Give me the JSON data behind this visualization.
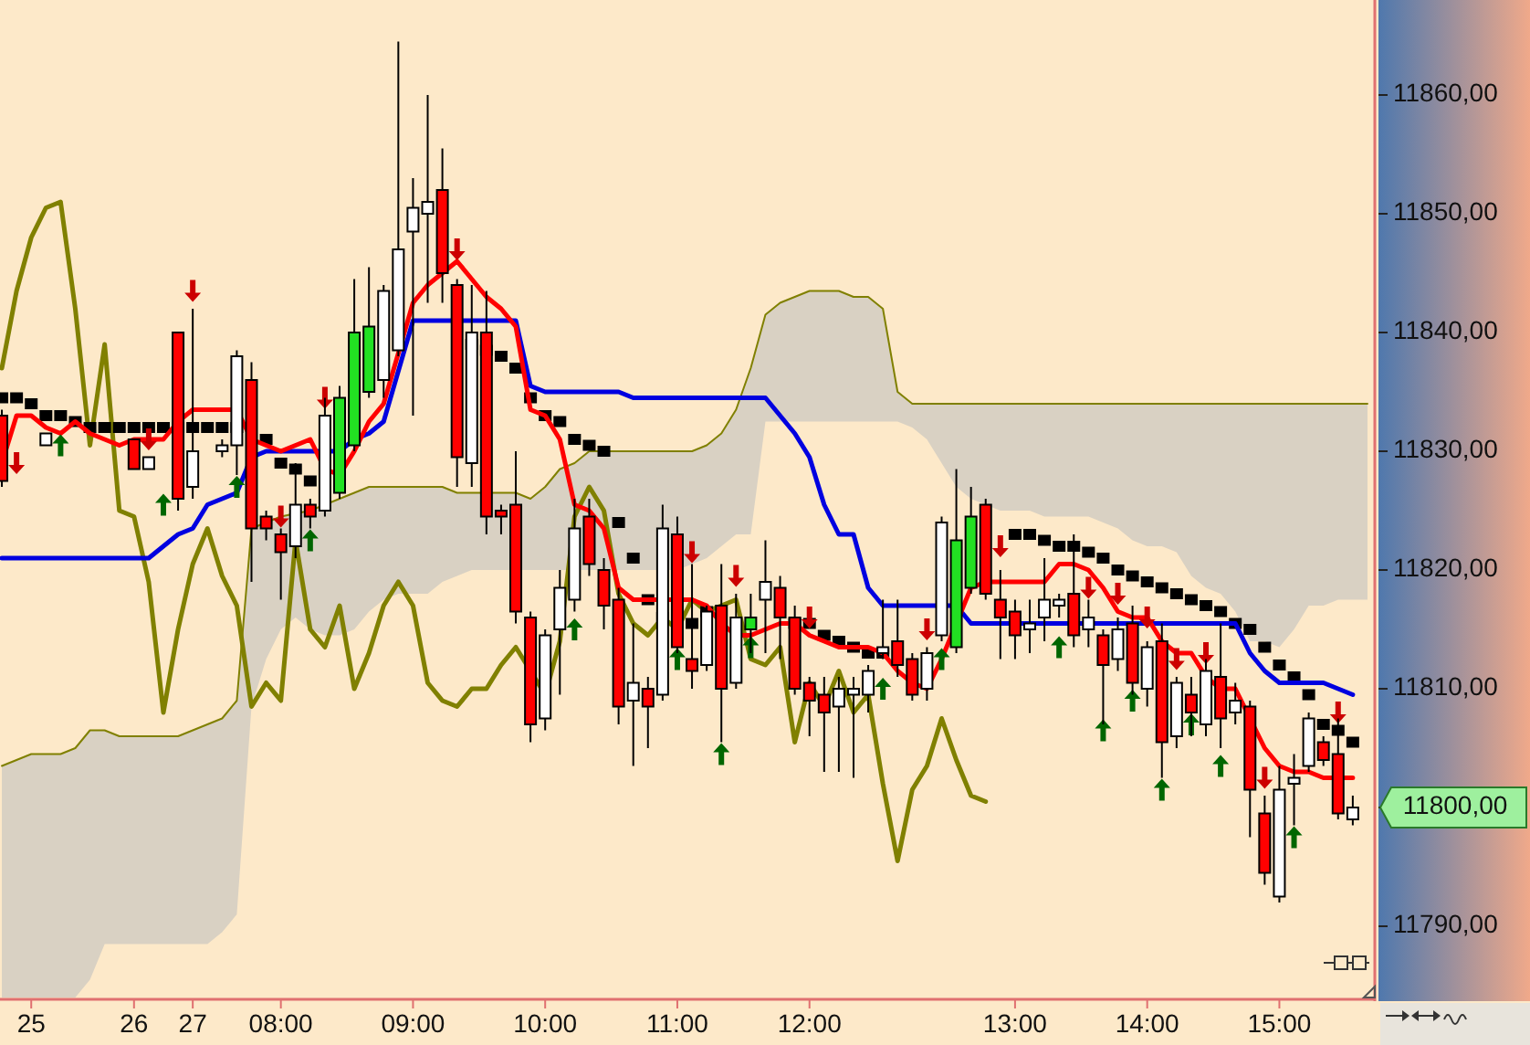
{
  "chart_data": {
    "type": "candlestick",
    "categories": [
      null,
      null,
      "25",
      null,
      null,
      null,
      null,
      null,
      null,
      "26",
      null,
      null,
      null,
      "27",
      null,
      null,
      null,
      null,
      null,
      "08:00",
      null,
      null,
      null,
      null,
      null,
      null,
      null,
      null,
      "09:00",
      null,
      null,
      null,
      null,
      null,
      null,
      null,
      null,
      "10:00",
      null,
      null,
      null,
      null,
      null,
      null,
      null,
      null,
      "11:00",
      null,
      null,
      null,
      null,
      null,
      null,
      null,
      null,
      "12:00",
      null,
      null,
      null,
      null,
      null,
      null,
      null,
      null,
      null,
      null,
      null,
      null,
      null,
      "13:00",
      null,
      null,
      null,
      null,
      null,
      null,
      null,
      null,
      "14:00",
      null,
      null,
      null,
      null,
      null,
      null,
      null,
      null,
      "15:00",
      null,
      null,
      null,
      null,
      null,
      null
    ],
    "ohlc": [
      [
        11833,
        11833.5,
        11827,
        11827.5
      ],
      null,
      null,
      [
        11830.5,
        11831.5,
        11830.5,
        11831.5
      ],
      null,
      null,
      null,
      null,
      null,
      [
        11831,
        11831,
        11828.5,
        11828.5
      ],
      [
        11828.5,
        11829.5,
        11828.5,
        11829.5
      ],
      null,
      [
        11840,
        11840,
        11825,
        11826
      ],
      [
        11827,
        11842,
        11826,
        11830
      ],
      null,
      [
        11830,
        11831,
        11829.5,
        11830.5
      ],
      [
        11830.5,
        11838.5,
        11828,
        11838
      ],
      [
        11836,
        11837.5,
        11819,
        11823.5
      ],
      [
        11824.5,
        11825,
        11822.5,
        11823.5
      ],
      [
        11823,
        11823.5,
        11817.5,
        11821.5
      ],
      [
        11822,
        11829,
        11821,
        11825.5
      ],
      [
        11825.5,
        11826,
        11823.5,
        11824.5
      ],
      [
        11825,
        11834.5,
        11824.5,
        11833
      ],
      [
        11826.5,
        11835.5,
        11826,
        11834.5
      ],
      [
        11830.5,
        11844.5,
        11830,
        11840
      ],
      [
        11835,
        11845.5,
        11834.5,
        11840.5
      ],
      [
        11836,
        11844,
        11834.5,
        11843.5
      ],
      [
        11838.5,
        11864.5,
        11838,
        11847
      ],
      [
        11848.5,
        11853,
        11833,
        11850.5
      ],
      [
        11850,
        11860,
        11842.5,
        11851
      ],
      [
        11852,
        11855.5,
        11842.5,
        11845
      ],
      [
        11844,
        11844.5,
        11827,
        11829.5
      ],
      [
        11829,
        11844,
        11827,
        11840
      ],
      [
        11840,
        11843.5,
        11823,
        11824.5
      ],
      [
        11825,
        11825.5,
        11823,
        11824.5
      ],
      [
        11825.5,
        11830,
        11815.5,
        11816.5
      ],
      [
        11816,
        11816.5,
        11805.5,
        11807
      ],
      [
        11807.5,
        11815,
        11806.5,
        11814.5
      ],
      [
        11815,
        11820,
        11809.5,
        11818.5
      ],
      [
        11817.5,
        11826,
        11816.5,
        11823.5
      ],
      [
        11824.5,
        11826,
        11819.5,
        11820.5
      ],
      [
        11820,
        11821,
        11815,
        11817
      ],
      [
        11817.5,
        11818.5,
        11807,
        11808.5
      ],
      [
        11809,
        11815.5,
        11803.5,
        11810.5
      ],
      [
        11810,
        11811,
        11805,
        11808.5
      ],
      [
        11809.5,
        11825.5,
        11809,
        11823.5
      ],
      [
        11823,
        11824.5,
        11813,
        11813.5
      ],
      [
        11812.5,
        11820.5,
        11810,
        11811.5
      ],
      [
        11812,
        11817,
        11811.5,
        11816.5
      ],
      [
        11817,
        11820.5,
        11805.5,
        11810
      ],
      [
        11810.5,
        11818,
        11810,
        11816
      ],
      [
        11815,
        11818,
        11813,
        11816
      ],
      [
        11817.5,
        11822.5,
        11813,
        11819
      ],
      [
        11818.5,
        11819.5,
        11812.5,
        11816
      ],
      [
        11816,
        11817,
        11809.5,
        11810
      ],
      [
        11810.5,
        11811,
        11806,
        11809
      ],
      [
        11809.5,
        11811,
        11803,
        11808
      ],
      [
        11808.5,
        11811,
        11803,
        11810
      ],
      [
        11809.5,
        11811,
        11802.5,
        11810
      ],
      [
        11809.5,
        11812,
        11808,
        11811.5
      ],
      [
        11813,
        11817.5,
        11812.5,
        11813.5
      ],
      [
        11814,
        11817.5,
        11811,
        11812
      ],
      [
        11812.5,
        11813,
        11809,
        11809.5
      ],
      [
        11810,
        11813.5,
        11809,
        11813
      ],
      [
        11814.5,
        11824.5,
        11814,
        11824
      ],
      [
        11813.5,
        11828.5,
        11813,
        11822.5
      ],
      [
        11818.5,
        11827,
        11818,
        11824.5
      ],
      [
        11825.5,
        11826,
        11817.5,
        11818
      ],
      [
        11817.5,
        11820,
        11812.5,
        11816
      ],
      [
        11816.5,
        11817.5,
        11812.5,
        11814.5
      ],
      [
        11815,
        11817.5,
        11813,
        11815.5
      ],
      [
        11816,
        11821,
        11814,
        11817.5
      ],
      [
        11817,
        11818,
        11816,
        11817.5
      ],
      [
        11818,
        11823,
        11813.5,
        11814.5
      ],
      [
        11815,
        11817.5,
        11813.5,
        11816
      ],
      [
        11814.5,
        11815,
        11807,
        11812
      ],
      [
        11812.5,
        11816,
        11811.5,
        11815
      ],
      [
        11815.5,
        11817,
        11809.5,
        11810.5
      ],
      [
        11810,
        11814,
        11808.5,
        11813.5
      ],
      [
        11814,
        11815.5,
        11802.5,
        11805.5
      ],
      [
        11806,
        11811,
        11805,
        11810.5
      ],
      [
        11809.5,
        11811,
        11806,
        11808
      ],
      [
        11807,
        11812.5,
        11806,
        11811.5
      ],
      [
        11811,
        11815.5,
        11805,
        11807.5
      ],
      [
        11808,
        11810.5,
        11807,
        11809
      ],
      [
        11808.5,
        11809,
        11797.5,
        11801.5
      ],
      [
        11799.5,
        11801,
        11793.5,
        11794.5
      ],
      [
        11792.5,
        11803.5,
        11792,
        11801.5
      ],
      [
        11802,
        11804.5,
        11798.5,
        11802.5
      ],
      [
        11803.5,
        11808,
        11803,
        11807.5
      ],
      [
        11805.5,
        11806,
        11803.5,
        11804
      ],
      [
        11804.5,
        11807.5,
        11799,
        11799.5
      ],
      [
        11799,
        11801,
        11798.5,
        11800
      ],
      null
    ],
    "colors": [
      "#ff0000",
      null,
      null,
      "#ffffff",
      null,
      null,
      null,
      null,
      null,
      "#ff0000",
      "#ffffff",
      null,
      "#ff0000",
      "#ffffff",
      null,
      "#ffffff",
      "#ffffff",
      "#ff0000",
      "#ff0000",
      "#ff0000",
      "#ffffff",
      "#ff0000",
      "#ffffff",
      "#22e022",
      "#22e022",
      "#22e022",
      "#ffffff",
      "#ffffff",
      "#ffffff",
      "#ffffff",
      "#ff0000",
      "#ff0000",
      "#ffffff",
      "#ff0000",
      "#ff0000",
      "#ff0000",
      "#ff0000",
      "#ffffff",
      "#ffffff",
      "#ffffff",
      "#ff0000",
      "#ff0000",
      "#ff0000",
      "#ffffff",
      "#ff0000",
      "#ffffff",
      "#ff0000",
      "#ff0000",
      "#ffffff",
      "#ff0000",
      "#ffffff",
      "#22e022",
      "#ffffff",
      "#ff0000",
      "#ff0000",
      "#ff0000",
      "#ff0000",
      "#ffffff",
      "#ffffff",
      "#ffffff",
      "#ffffff",
      "#ff0000",
      "#ff0000",
      "#ffffff",
      "#ffffff",
      "#22e022",
      "#22e022",
      "#ff0000",
      "#ff0000",
      "#ff0000",
      "#ffffff",
      "#ffffff",
      "#ffffff",
      "#ff0000",
      "#ffffff",
      "#ff0000",
      "#ffffff",
      "#ff0000",
      "#ffffff",
      "#ff0000",
      "#ffffff",
      "#ff0000",
      "#ffffff",
      "#ff0000",
      "#ffffff",
      "#ff0000",
      "#ff0000",
      "#ffffff",
      "#ffffff",
      "#ffffff",
      "#ff0000",
      "#ff0000",
      "#ffffff",
      null
    ],
    "series": [
      {
        "type": "line",
        "color": "#808000",
        "upper": [
          11803.5,
          11804,
          11804.5,
          11804.5,
          11804.5,
          11805,
          11806.5,
          11806.5,
          11806,
          11806,
          11806,
          11806,
          11806,
          11806.5,
          11807,
          11807.5,
          11809,
          11823.5,
          11824,
          11824.5,
          11825,
          11825,
          11825.5,
          11826,
          11826.5,
          11827,
          11827,
          11827,
          11827,
          11827,
          11827,
          11826.5,
          11826.5,
          11826.5,
          11826.5,
          11826.5,
          11826,
          11827,
          11828.5,
          11829,
          11830,
          11830,
          11830,
          11830,
          11830,
          11830,
          11830,
          11830,
          11830.5,
          11831.5,
          11833.5,
          11837,
          11841.5,
          11842.5,
          11843,
          11843.5,
          11843.5,
          11843.5,
          11843,
          11843,
          11842,
          11835,
          11834,
          11834,
          11834,
          11834,
          11834,
          11834,
          11834,
          11834,
          11834,
          11834,
          11834,
          11834,
          11834,
          11834,
          11834,
          11834,
          11834,
          11834,
          11834,
          11834,
          11834,
          11834,
          11834,
          11834,
          11834,
          11834,
          11834,
          11834,
          11834,
          11834,
          11834,
          11834
        ],
        "values": [
          11803.5,
          11804,
          11804.5,
          11804.5,
          11804.5,
          11805,
          11806.5,
          11806.5,
          11806,
          11806,
          11806,
          11806,
          11806,
          11806.5,
          11807,
          11807.5,
          11809,
          11823.5,
          11824,
          11824.5,
          null,
          11825,
          null,
          11826,
          11826.5,
          11827,
          11827,
          11827,
          11827,
          11827,
          11827,
          11826.5,
          11826.5,
          null,
          11826.5,
          11826.5,
          11826,
          11827,
          11828.5,
          11829,
          11830,
          11830,
          11830,
          11830,
          11830,
          11830,
          11830,
          11830,
          11830.5,
          11831.5,
          11833.5,
          11837,
          11841.5,
          11842.5,
          11843,
          11843.5,
          11843.5,
          11843.5,
          11843,
          11843,
          11842,
          11835,
          11834,
          11834,
          11834,
          11834,
          11834,
          11834,
          11834,
          11834,
          11834,
          11834,
          11834,
          11834,
          11834,
          11834,
          11834,
          11834,
          11834,
          11834,
          11834,
          11834,
          11834,
          11834,
          11834,
          11834,
          11834,
          11834,
          11834,
          11834,
          11834,
          11834,
          11834,
          11834
        ],
        "lower": [
          11784,
          11784,
          11784,
          11784,
          11784,
          11784,
          11785.5,
          11788.5,
          11788.5,
          11788.5,
          11788.5,
          11788.5,
          11788.5,
          11788.5,
          11788.5,
          11789.5,
          11791,
          11808.5,
          11812.5,
          11815,
          11816,
          11815,
          11814.5,
          11814.5,
          11815,
          11816.5,
          11817.5,
          11818,
          11818,
          11818,
          11819,
          11819.5,
          11820,
          11820,
          11820,
          11820,
          11820,
          11820,
          11820,
          11820,
          11820,
          11820,
          11820,
          11820,
          11820,
          11820,
          11820,
          11820.5,
          11821,
          11822,
          11823,
          11823,
          11832.5,
          11832.5,
          11832.5,
          11832.5,
          11832.5,
          11832.5,
          11832.5,
          11832.5,
          11832.5,
          11832.5,
          11832,
          11831,
          11829,
          11827,
          11826,
          11825.5,
          11825,
          11825,
          11825,
          11824.5,
          11824.5,
          11824.5,
          11824.5,
          11824,
          11823.5,
          11822.5,
          11822,
          11822,
          11821.5,
          11819.5,
          11818.5,
          11818,
          11816.5,
          11814,
          11814,
          11813.5,
          11815,
          11817,
          11817,
          11817.5,
          11817.5,
          11817.5
        ]
      },
      {
        "type": "line",
        "color": "#808000",
        "values": [
          11837,
          11843.5,
          11848,
          11850.5,
          11851,
          11842,
          11830.5,
          11839,
          11825,
          11824.5,
          11819,
          11808,
          11815,
          11820.5,
          11823.5,
          11819.5,
          11817,
          11808.5,
          11810.5,
          11809,
          11822.5,
          11815,
          11813.5,
          11817,
          11810,
          11813,
          11817,
          11819,
          11817,
          11810.5,
          11809,
          11808.5,
          11810,
          11810,
          11812,
          11813.5,
          11811.5,
          11809.5,
          11814,
          11824.5,
          11827,
          11825,
          11818,
          11815.5,
          11814.5,
          11816,
          11815,
          11817.5,
          11816.5,
          11817,
          11817.5,
          11812.5,
          11812,
          11813.5,
          11805.5,
          11810.5,
          11808.5,
          11811.5,
          11808,
          11809.5,
          11802,
          11795.5,
          11801.5,
          11803.5,
          11807.5,
          11804,
          11801,
          11800.5,
          null,
          null,
          null,
          null,
          null,
          null,
          null,
          null,
          null,
          null,
          null,
          null,
          null,
          null,
          null,
          null,
          null,
          null,
          null,
          null,
          null,
          null,
          null,
          null,
          null,
          null
        ]
      },
      {
        "type": "scatter",
        "marker": "square",
        "color": "#000000",
        "values": [
          11834.5,
          11834.5,
          11834,
          11833,
          11833,
          11832.5,
          11832,
          11832,
          11832,
          11832,
          11832,
          11832,
          11832,
          11832,
          11832,
          11832,
          11832,
          null,
          11831,
          11829,
          11828.5,
          11827.5,
          null,
          null,
          null,
          null,
          null,
          null,
          null,
          null,
          null,
          null,
          11839,
          11838.5,
          11838,
          11837,
          11834.5,
          11833,
          11832.5,
          11831,
          11830.5,
          11830,
          11824,
          11821,
          11817.5,
          11816,
          null,
          11815.5,
          11816.5,
          null,
          null,
          null,
          null,
          null,
          11815.5,
          11815.5,
          11814.5,
          11814,
          11813.5,
          11813,
          11813,
          null,
          null,
          null,
          null,
          null,
          null,
          null,
          null,
          11823,
          11823,
          11822.5,
          11822,
          11822,
          11821.5,
          11821,
          11820,
          11819.5,
          11819,
          11818.5,
          11818,
          11817.5,
          11817,
          11816.5,
          11815.5,
          11815,
          11813.5,
          11812,
          11811,
          11809.5,
          11807,
          11806.5,
          11805.5,
          null
        ]
      },
      {
        "type": "line",
        "color": "#0000e0",
        "values": [
          11821,
          11821,
          11821,
          11821,
          11821,
          11821,
          11821,
          11821,
          11821,
          11821,
          11821,
          11822,
          11823,
          11823.5,
          11825.5,
          11826,
          11826.5,
          11829.5,
          11830,
          11830,
          11830,
          11830,
          11830,
          11830,
          11831,
          11831.5,
          11832.5,
          null,
          11841,
          11841,
          11841,
          11841,
          11841,
          11841,
          11841,
          11841,
          11835.5,
          11835,
          11835,
          11835,
          11835,
          11835,
          11835,
          11834.5,
          11834.5,
          11834.5,
          11834.5,
          11834.5,
          11834.5,
          11834.5,
          11834.5,
          11834.5,
          11834.5,
          11833,
          11831.5,
          11829.5,
          11825.5,
          11823,
          11823,
          11818.5,
          11817,
          11817,
          11817,
          11817,
          11817,
          11817,
          11815.5,
          11815.5,
          11815.5,
          11815.5,
          11815.5,
          11815.5,
          11815.5,
          11815.5,
          11815.5,
          11815.5,
          11815.5,
          11815.5,
          11815.5,
          11815.5,
          11815.5,
          11815.5,
          11815.5,
          11815.5,
          11815.5,
          11813,
          11811.5,
          11810.5,
          11810.5,
          11810.5,
          11810.5,
          11810,
          11809.5,
          null
        ]
      },
      {
        "type": "line",
        "color": "#ff0000",
        "values": [
          11829,
          11833,
          11833,
          11832,
          11831.5,
          11832.5,
          11831.5,
          11831,
          11830.5,
          11831,
          11831,
          11831,
          11832.5,
          11833.5,
          11833.5,
          11833.5,
          11833.5,
          11831,
          11830.5,
          11830,
          11830.5,
          11831,
          11828.5,
          11828,
          11830,
          11832.5,
          11834,
          null,
          11842.5,
          11844,
          11845,
          11846,
          11844.5,
          11843,
          11842,
          11840.5,
          11833.5,
          11833,
          11831,
          11825.5,
          11825,
          11823.5,
          11818.5,
          11817.5,
          11817.5,
          11817.5,
          11817.5,
          11817.5,
          11817,
          11815.5,
          11814.5,
          11814.5,
          11815,
          11815.5,
          11815.5,
          11814.5,
          11814,
          11813.5,
          11813.5,
          11813.5,
          11813,
          11811.5,
          11810.5,
          11810,
          11812.5,
          null,
          11818.5,
          11819,
          11819,
          11819,
          11819,
          11819,
          11820.5,
          11820.5,
          11820,
          11818.5,
          11816.5,
          11816,
          11816,
          11814,
          11813,
          11813,
          11811,
          11810,
          11810,
          11807.5,
          11805,
          11803.5,
          11803,
          11803,
          11802.5,
          11802.5,
          11802.5,
          null
        ]
      },
      {
        "type": "scatter",
        "marker": "triangle",
        "color": "#cc0000",
        "values": [
          null,
          11829,
          null,
          null,
          null,
          null,
          null,
          null,
          null,
          null,
          11831,
          null,
          null,
          11843.5,
          null,
          null,
          null,
          null,
          null,
          11824.5,
          null,
          null,
          11834.5,
          null,
          null,
          null,
          null,
          null,
          null,
          null,
          null,
          11847,
          null,
          null,
          null,
          null,
          null,
          null,
          null,
          null,
          null,
          null,
          null,
          null,
          null,
          null,
          null,
          11821.5,
          null,
          null,
          11819.5,
          null,
          null,
          null,
          null,
          11816,
          null,
          null,
          null,
          null,
          null,
          null,
          null,
          11815,
          null,
          null,
          null,
          null,
          11822,
          null,
          null,
          null,
          null,
          null,
          11818.5,
          null,
          11818,
          null,
          11816,
          null,
          11812.5,
          null,
          11813,
          null,
          null,
          null,
          11802.5,
          null,
          null,
          null,
          null,
          11808,
          null,
          null
        ]
      },
      {
        "type": "scatter",
        "marker": "triangle",
        "color": "#006600",
        "values": [
          null,
          null,
          null,
          null,
          11830.5,
          null,
          null,
          null,
          null,
          null,
          null,
          11825.5,
          null,
          null,
          null,
          null,
          11827,
          null,
          null,
          null,
          null,
          11822.5,
          null,
          null,
          null,
          null,
          null,
          null,
          null,
          null,
          null,
          null,
          null,
          null,
          null,
          null,
          null,
          null,
          null,
          11815,
          null,
          null,
          null,
          null,
          null,
          null,
          11812.5,
          null,
          null,
          11804.5,
          null,
          11813.5,
          null,
          null,
          null,
          null,
          null,
          null,
          null,
          null,
          11810,
          null,
          null,
          null,
          11812.5,
          null,
          null,
          null,
          null,
          null,
          null,
          null,
          11813.5,
          null,
          null,
          11806.5,
          null,
          11809,
          null,
          11801.5,
          null,
          11807,
          null,
          11803.5,
          null,
          null,
          null,
          null,
          11797.5,
          null,
          null,
          null,
          null,
          null
        ]
      }
    ],
    "ylim": [
      11784,
      11868
    ],
    "yticks": [
      {
        "value": 11790,
        "label": "11790,00"
      },
      {
        "value": 11800,
        "label": null
      },
      {
        "value": 11810,
        "label": "11810,00"
      },
      {
        "value": 11820,
        "label": "11820,00"
      },
      {
        "value": 11830,
        "label": "11830,00"
      },
      {
        "value": 11840,
        "label": "11840,00"
      },
      {
        "value": 11850,
        "label": "11850,00"
      },
      {
        "value": 11860,
        "label": "11860,00"
      }
    ],
    "annotations": [
      "11800,00"
    ]
  }
}
